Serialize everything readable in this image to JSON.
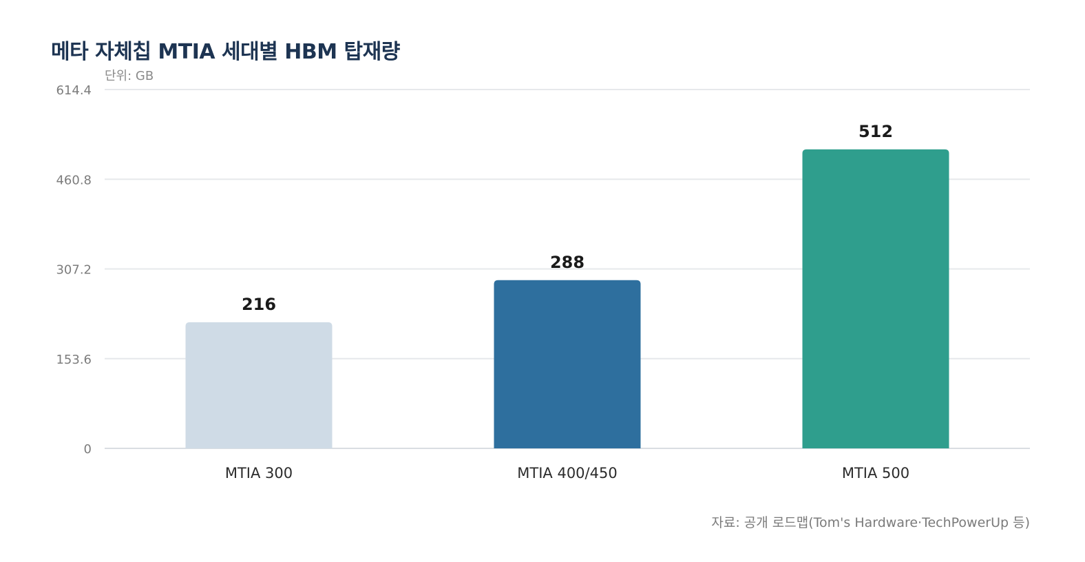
{
  "chart_data": {
    "type": "bar",
    "title": "메타 자체칩 MTIA 세대별 HBM 탑재량",
    "unit_label": "단위: GB",
    "source": "자료: 공개 로드맵(Tom's Hardware·TechPowerUp 등)",
    "categories": [
      "MTIA 300",
      "MTIA 400/450",
      "MTIA 500"
    ],
    "values": [
      216,
      288,
      512
    ],
    "value_labels": [
      "216",
      "288",
      "512"
    ],
    "colors": [
      "#cfdbe6",
      "#2e6f9e",
      "#2f9e8d"
    ],
    "ylim": [
      0,
      614.4
    ],
    "yticks": [
      0,
      153.6,
      307.2,
      460.8,
      614.4
    ],
    "ytick_labels": [
      "0",
      "153.6",
      "307.2",
      "460.8",
      "614.4"
    ],
    "grid": true,
    "legend": "none"
  }
}
